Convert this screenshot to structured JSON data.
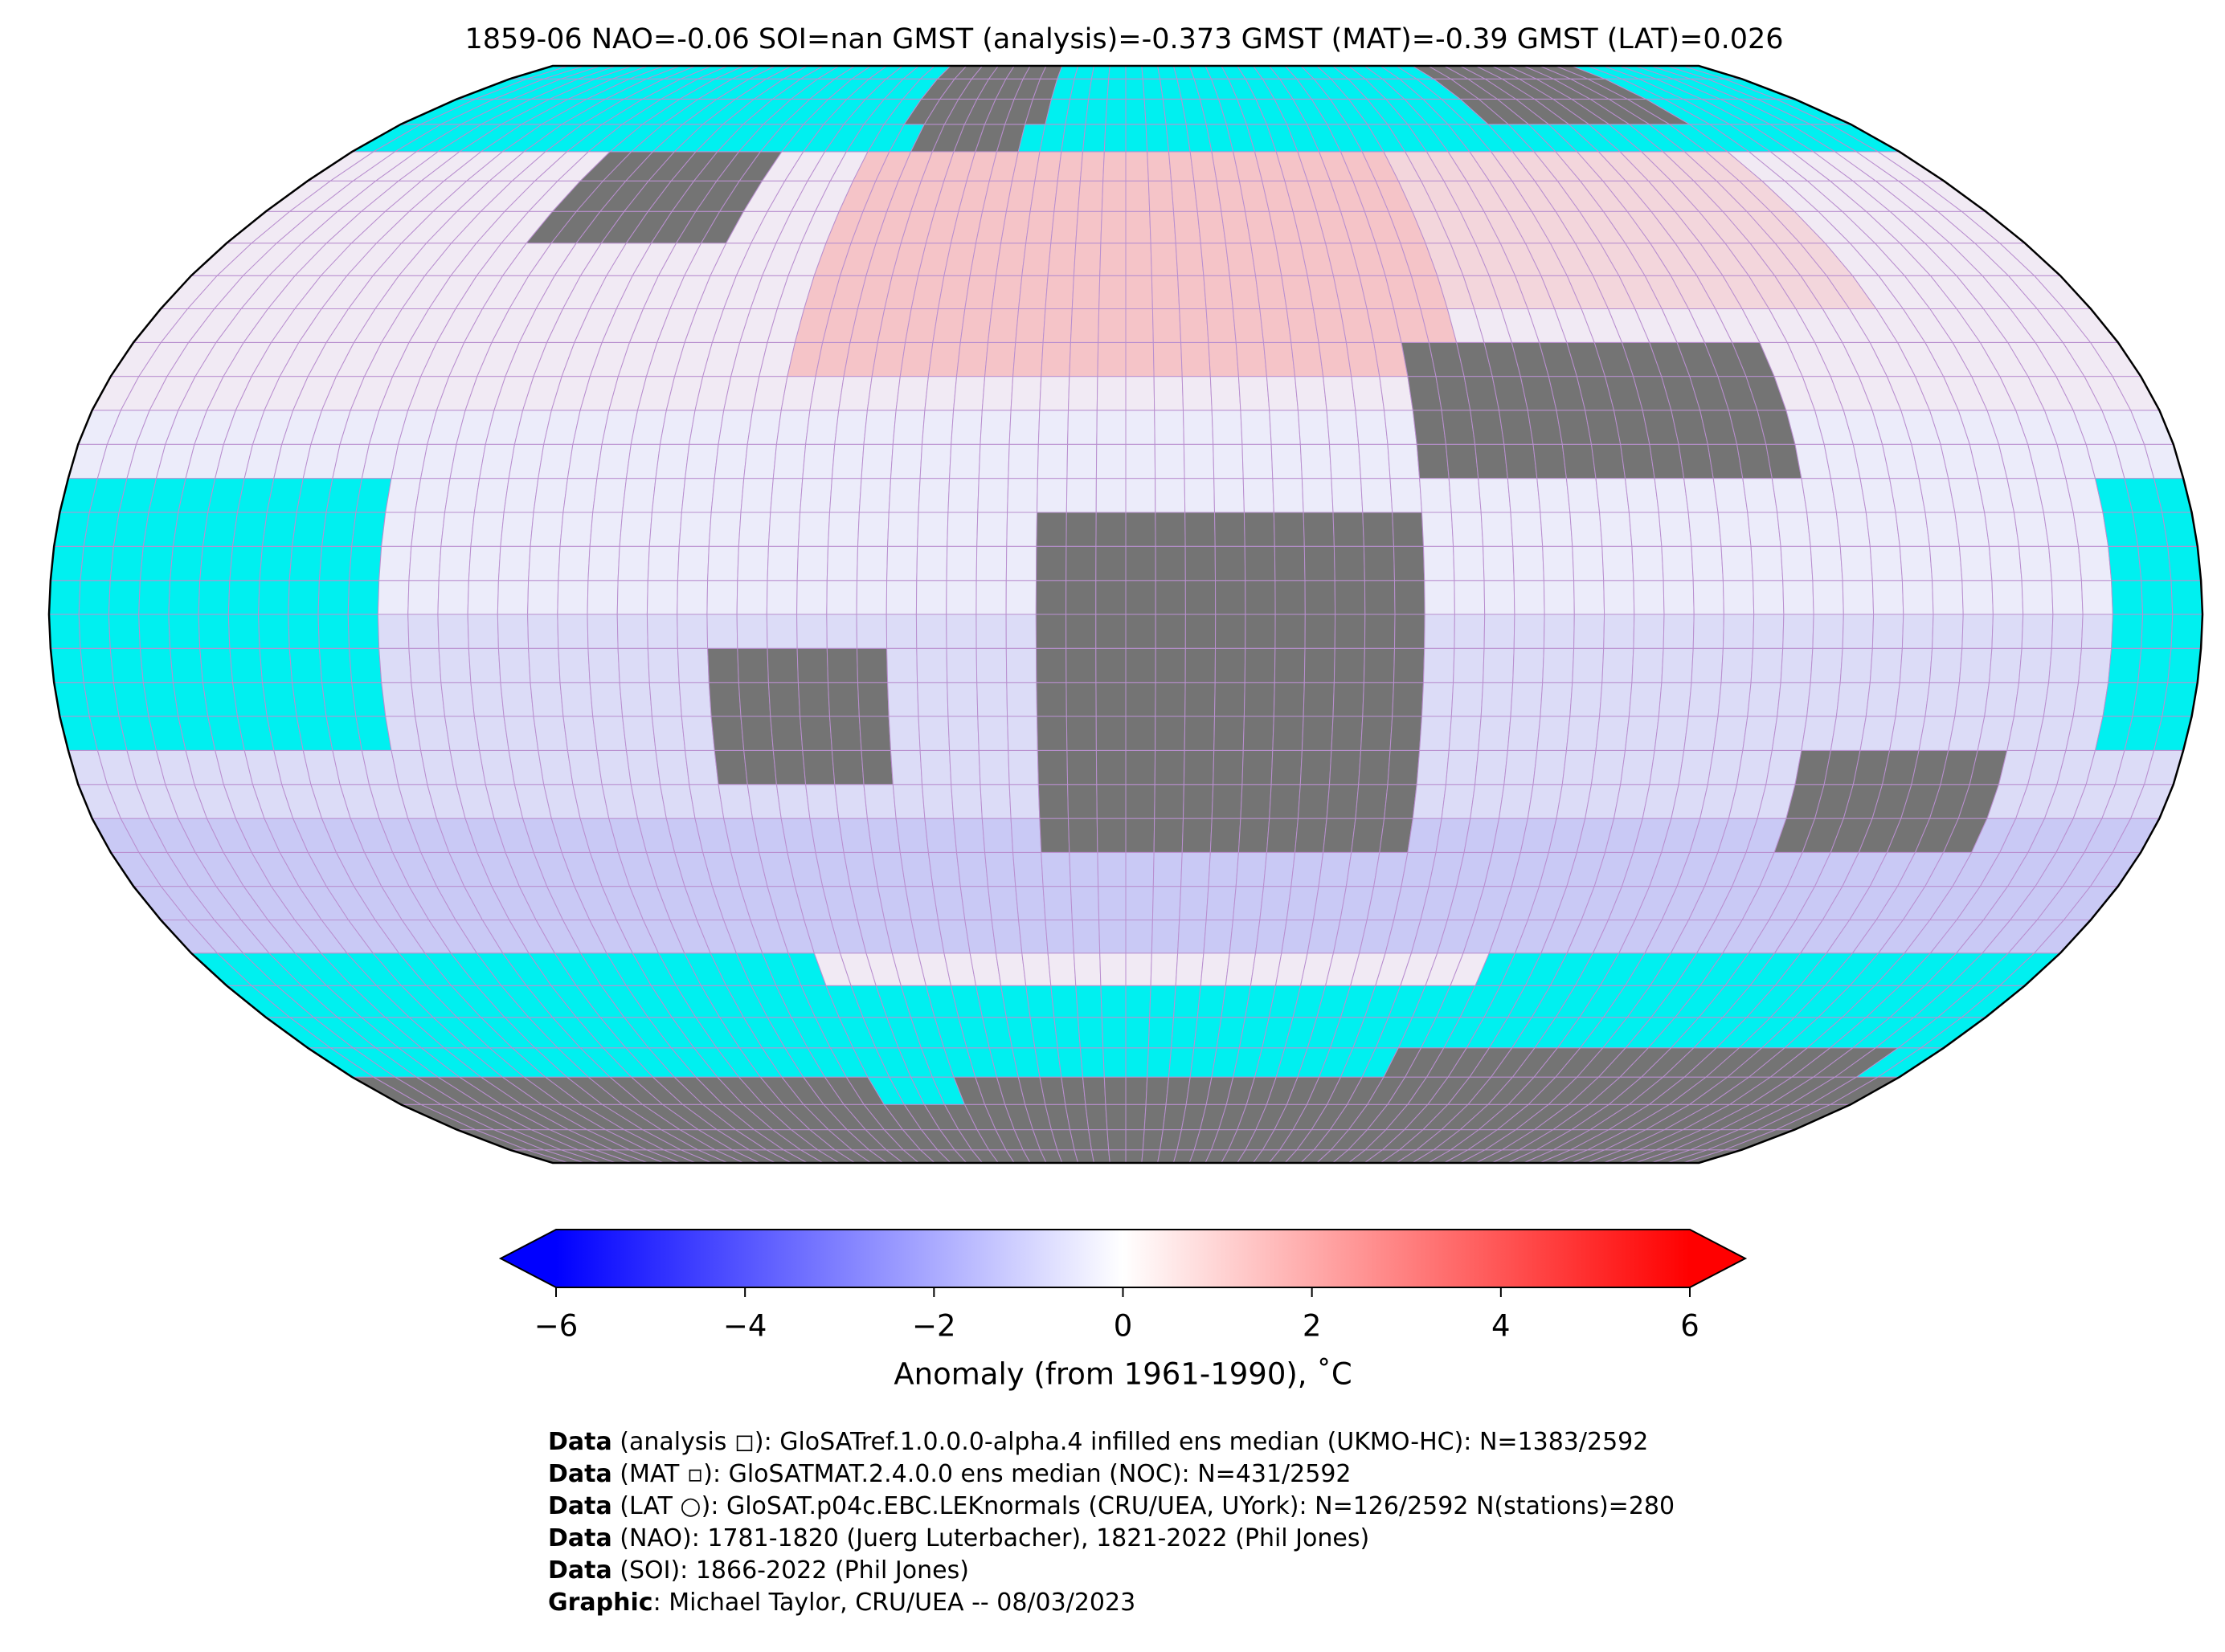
{
  "chart_data": {
    "type": "map",
    "title": "1859-06 NAO=-0.06 SOI=nan GMST (analysis)=-0.373 GMST (MAT)=-0.39 GMST (LAT)=0.026",
    "colorbar": {
      "label": "Anomaly (from 1961-1990), ˚C",
      "xlim": [
        -6,
        6
      ],
      "xticks": [
        {
          "value": -6,
          "label": "−6"
        },
        {
          "value": -4,
          "label": "−4"
        },
        {
          "value": -2,
          "label": "−2"
        },
        0,
        2,
        4,
        6
      ],
      "colors": [
        "#0000ff",
        "#ffffff",
        "#ff0000"
      ]
    },
    "notes": [
      {
        "bold": "Data",
        "text": " (analysis ◻): GloSATref.1.0.0.0-alpha.4 infilled ens median (UKMO-HC): N=1383/2592"
      },
      {
        "bold": "Data",
        "text": " (MAT ▫): GloSATMAT.2.4.0.0 ens median (NOC): N=431/2592"
      },
      {
        "bold": "Data",
        "text": " (LAT ○): GloSAT.p04c.EBC.LEKnormals (CRU/UEA, UYork): N=126/2592 N(stations)=280"
      },
      {
        "bold": "Data",
        "text": " (NAO): 1781-1820 (Juerg Luterbacher), 1821-2022 (Phil Jones)"
      },
      {
        "bold": "Data",
        "text": " (SOI): 1866-2022 (Phil Jones)"
      },
      {
        "bold": "Graphic",
        "text": ": Michael Taylor, CRU/UEA -- 08/03/2023"
      }
    ]
  }
}
